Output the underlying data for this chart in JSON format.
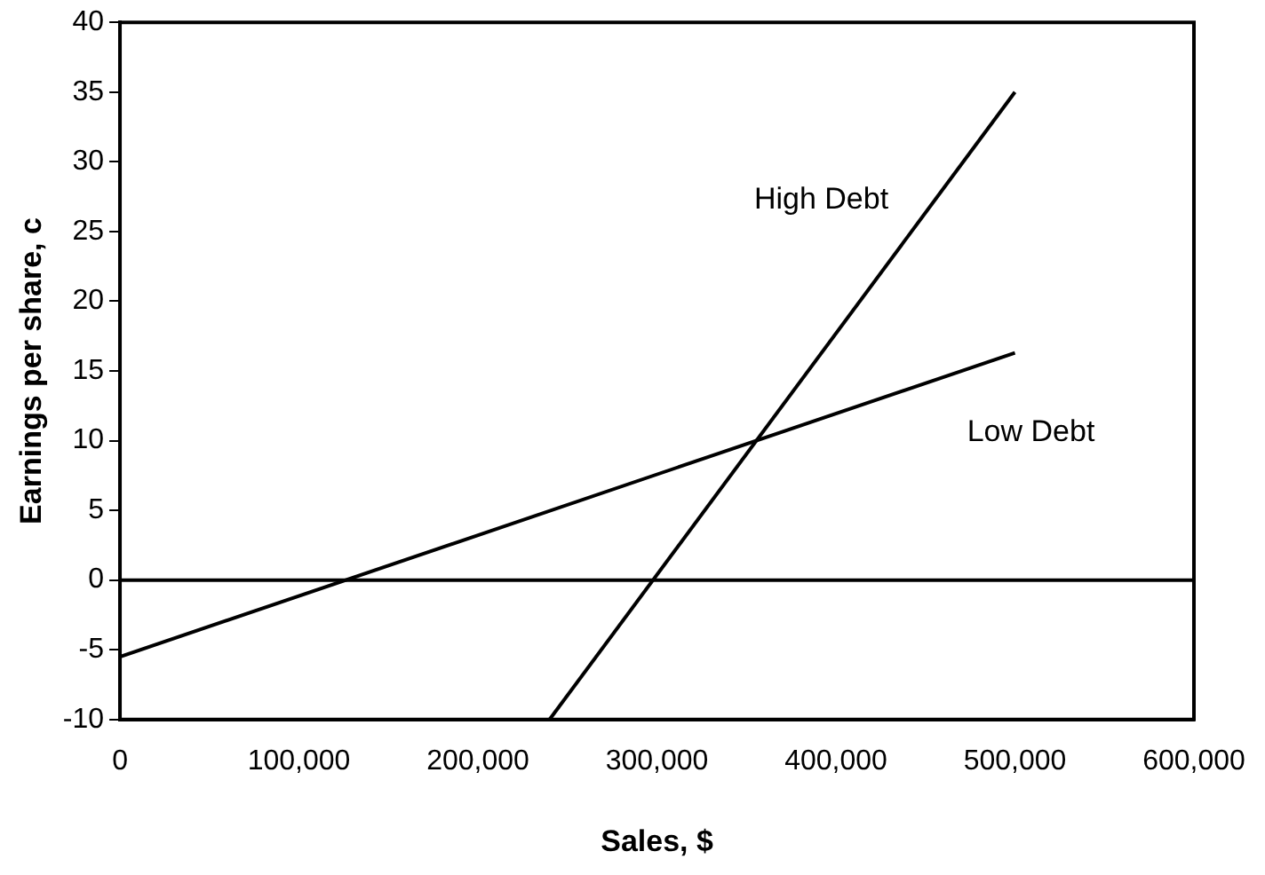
{
  "chart_data": {
    "type": "line",
    "xlabel": "Sales, $",
    "ylabel": "Earnings per share, c",
    "series": [
      {
        "name": "Low Debt",
        "color": "#000000",
        "x": [
          0,
          500000
        ],
        "values": [
          -5.5,
          16.3
        ]
      },
      {
        "name": "High Debt",
        "color": "#000000",
        "x": [
          240000,
          500000
        ],
        "values": [
          -10,
          35
        ]
      }
    ],
    "xlim": [
      0,
      600000
    ],
    "xticks": [
      {
        "value": 0,
        "label": "0"
      },
      {
        "value": 100000,
        "label": "100,000"
      },
      {
        "value": 200000,
        "label": "200,000"
      },
      {
        "value": 300000,
        "label": "300,000"
      },
      {
        "value": 400000,
        "label": "400,000"
      },
      {
        "value": 500000,
        "label": "500,000"
      },
      {
        "value": 600000,
        "label": "600,000"
      }
    ],
    "ylim": [
      -10,
      40
    ],
    "yticks": [
      -10,
      -5,
      0,
      5,
      10,
      15,
      20,
      25,
      30,
      35,
      40
    ],
    "ref_lines": [
      {
        "axis": "y",
        "value": 0,
        "color": "#000000"
      }
    ],
    "grid": false,
    "legend": false,
    "marker": "none",
    "line_style": "solid"
  }
}
